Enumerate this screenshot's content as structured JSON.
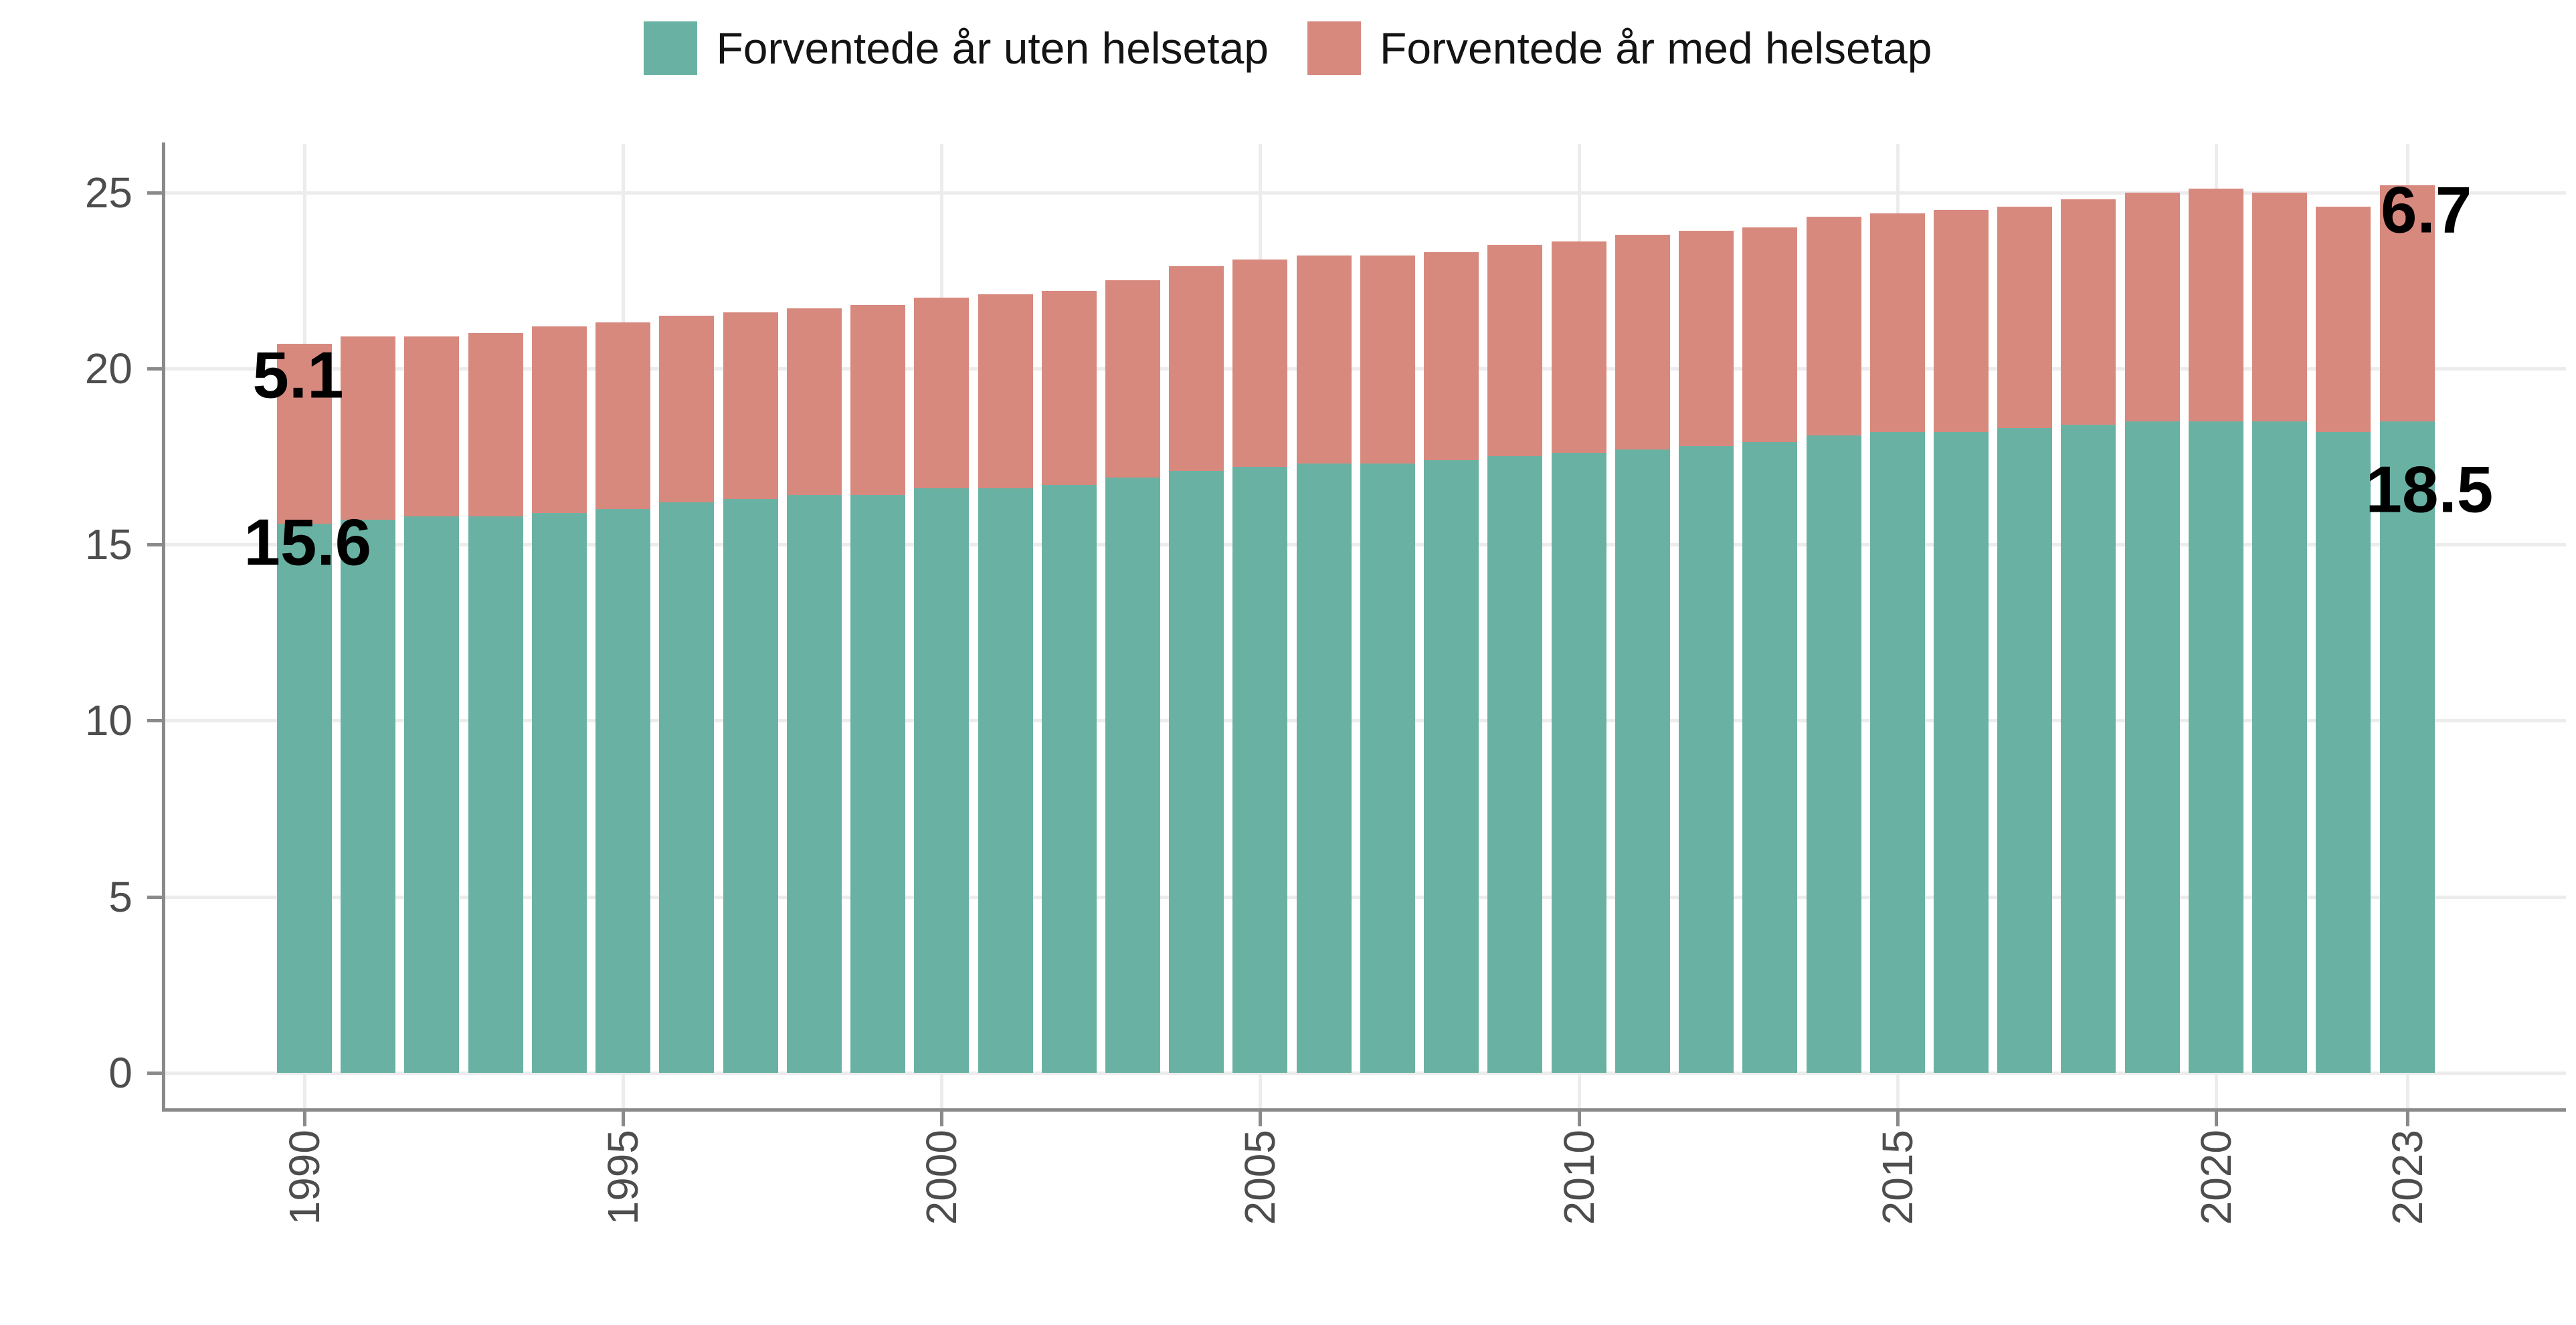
{
  "legend": {
    "items": [
      {
        "label": "Forventede år uten helsetap",
        "color": "#69b2a3"
      },
      {
        "label": "Forventede år med helsetap",
        "color": "#d8897e"
      }
    ]
  },
  "chart_data": {
    "type": "bar",
    "stacked": true,
    "title": "",
    "xlabel": "",
    "ylabel": "",
    "categories": [
      1990,
      1991,
      1992,
      1993,
      1994,
      1995,
      1996,
      1997,
      1998,
      1999,
      2000,
      2001,
      2002,
      2003,
      2004,
      2005,
      2006,
      2007,
      2008,
      2009,
      2010,
      2011,
      2012,
      2013,
      2014,
      2015,
      2016,
      2017,
      2018,
      2019,
      2020,
      2021,
      2022,
      2023
    ],
    "series": [
      {
        "name": "Forventede år uten helsetap",
        "color": "#69b2a3",
        "values": [
          15.6,
          15.7,
          15.8,
          15.8,
          15.9,
          16.0,
          16.2,
          16.3,
          16.4,
          16.4,
          16.6,
          16.6,
          16.7,
          16.9,
          17.1,
          17.2,
          17.3,
          17.3,
          17.4,
          17.5,
          17.6,
          17.7,
          17.8,
          17.9,
          18.1,
          18.2,
          18.2,
          18.3,
          18.4,
          18.5,
          18.5,
          18.5,
          18.2,
          18.5
        ]
      },
      {
        "name": "Forventede år med helsetap",
        "color": "#d8897e",
        "values": [
          5.1,
          5.2,
          5.1,
          5.2,
          5.3,
          5.3,
          5.3,
          5.3,
          5.3,
          5.4,
          5.4,
          5.5,
          5.5,
          5.6,
          5.8,
          5.9,
          5.9,
          5.9,
          5.9,
          6.0,
          6.0,
          6.1,
          6.1,
          6.1,
          6.2,
          6.2,
          6.3,
          6.3,
          6.4,
          6.5,
          6.6,
          6.5,
          6.4,
          6.7
        ]
      }
    ],
    "ylim": [
      0,
      26.4
    ],
    "yticks": [
      0,
      5,
      10,
      15,
      20,
      25
    ],
    "x_tick_years": [
      1990,
      1995,
      2000,
      2005,
      2010,
      2015,
      2020,
      2023
    ],
    "grid": "major-light-gray",
    "legend_position": "top-center",
    "annotations": [
      {
        "label": "5.1",
        "year": 1989.9,
        "value": 19.8
      },
      {
        "label": "15.6",
        "year": 1990.05,
        "value": 15.05
      },
      {
        "label": "6.7",
        "year": 2023.3,
        "value": 24.5
      },
      {
        "label": "18.5",
        "year": 2023.35,
        "value": 16.55
      }
    ]
  }
}
